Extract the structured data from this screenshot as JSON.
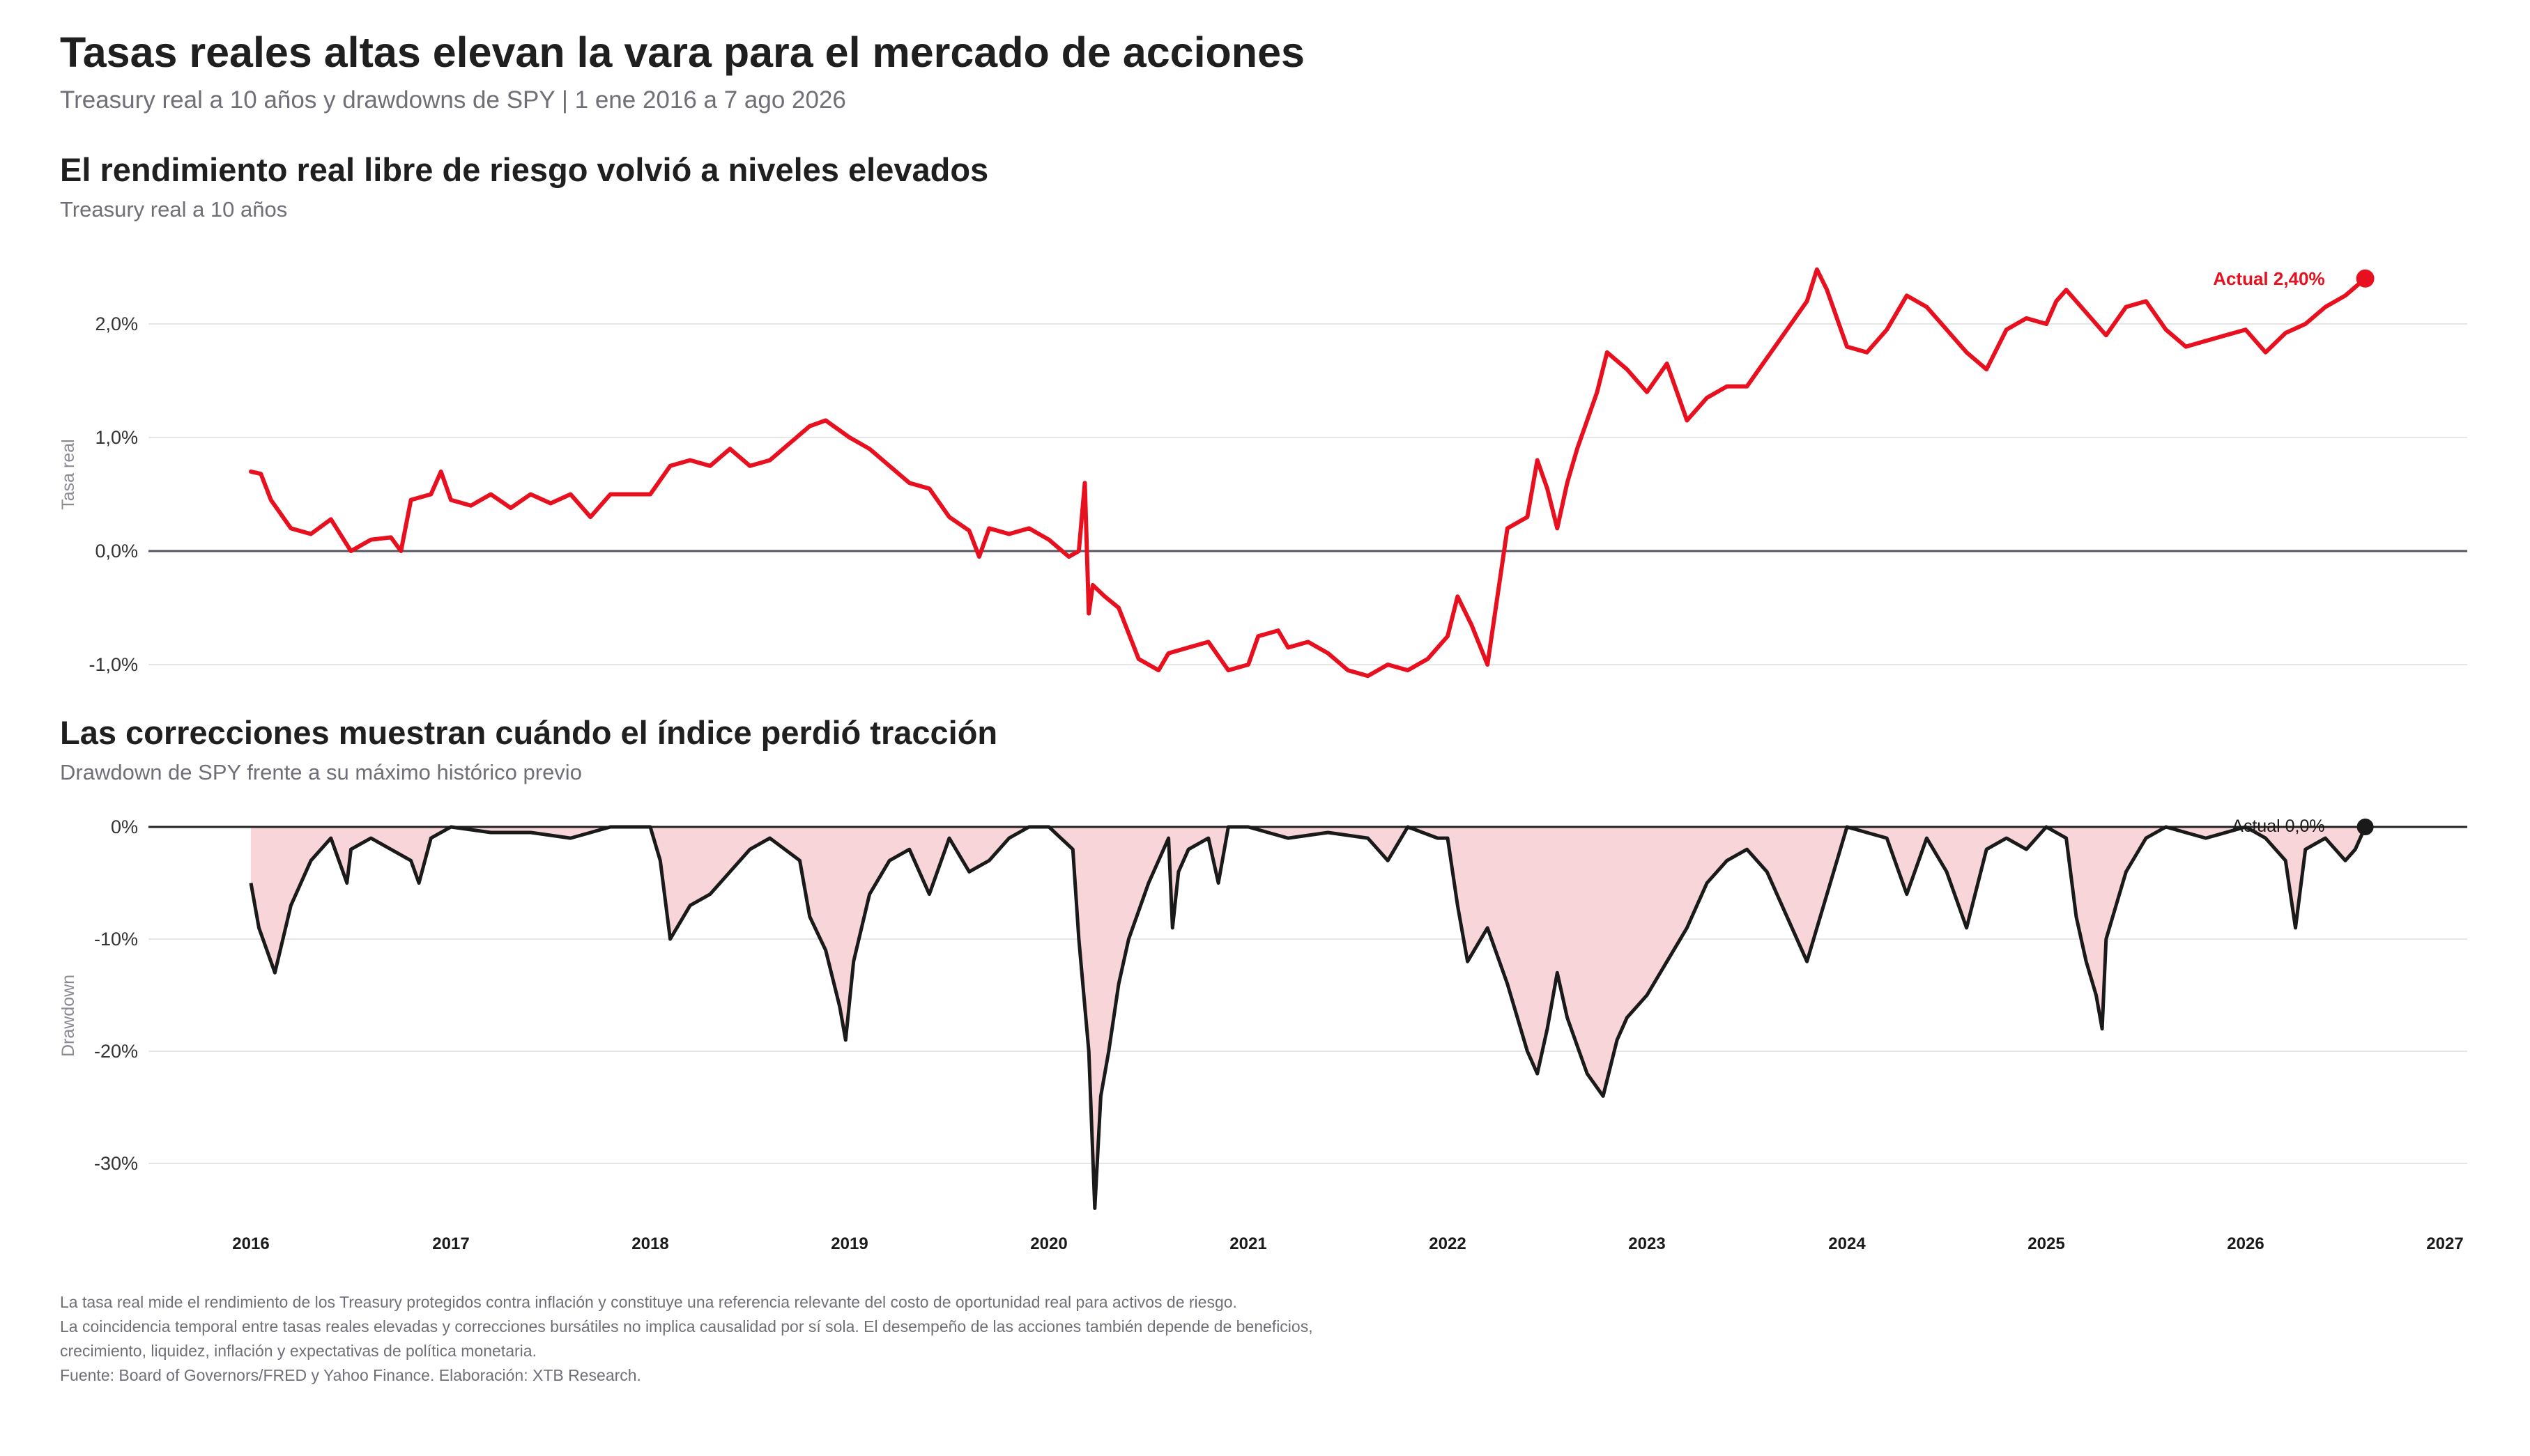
{
  "title": "Tasas reales altas elevan la vara para el mercado de acciones",
  "subtitle": "Treasury real a 10 años y drawdowns de SPY | 1 ene 2016 a 7 ago 2026",
  "panel1": {
    "title": "El rendimiento real libre de riesgo volvió a niveles elevados",
    "subtitle": "Treasury real a 10 años",
    "ylabel": "Tasa real",
    "yticks": [
      "2,0%",
      "1,0%",
      "0,0%",
      "-1,0%"
    ],
    "current_label": "Actual 2,40%"
  },
  "panel2": {
    "title": "Las correcciones muestran cuándo el índice perdió tracción",
    "subtitle": "Drawdown de SPY frente a su máximo histórico previo",
    "ylabel": "Drawdown",
    "yticks": [
      "0%",
      "-10%",
      "-20%",
      "-30%"
    ],
    "current_label": "Actual 0,0%"
  },
  "xticks": [
    "2016",
    "2017",
    "2018",
    "2019",
    "2020",
    "2021",
    "2022",
    "2023",
    "2024",
    "2025",
    "2026",
    "2027"
  ],
  "notes": [
    "La tasa real mide el rendimiento de los Treasury protegidos contra inflación y constituye una referencia relevante del costo de oportunidad real para activos de riesgo.",
    "La coincidencia temporal entre tasas reales elevadas y correcciones bursátiles no implica causalidad por sí sola. El desempeño de las acciones también depende de beneficios, crecimiento, liquidez, inflación y expectativas de política monetaria.",
    "Fuente: Board of Governors/FRED y Yahoo Finance. Elaboración: XTB Research."
  ],
  "colors": {
    "real_rate": "#e8101e",
    "drawdown_line": "#1a1a1a",
    "drawdown_fill": "#f8d5d8",
    "grid": "#e6e6e6",
    "zero": "#555560",
    "muted": "#6f6f77"
  },
  "chart_data": [
    {
      "type": "line",
      "title": "El rendimiento real libre de riesgo volvió a niveles elevados",
      "ylabel": "Tasa real",
      "ylim": [
        -1.25,
        2.6
      ],
      "grid": true,
      "series": [
        {
          "x": [
            2016.0,
            2016.05,
            2016.1,
            2016.2,
            2016.3,
            2016.4,
            2016.5,
            2016.55,
            2016.6,
            2016.7,
            2016.75,
            2016.8,
            2016.9,
            2016.95,
            2017.0,
            2017.1,
            2017.2,
            2017.3,
            2017.4,
            2017.5,
            2017.6,
            2017.7,
            2017.8,
            2017.9,
            2018.0,
            2018.1,
            2018.2,
            2018.3,
            2018.4,
            2018.5,
            2018.6,
            2018.7,
            2018.8,
            2018.88,
            2019.0,
            2019.1,
            2019.2,
            2019.3,
            2019.4,
            2019.5,
            2019.6,
            2019.65,
            2019.7,
            2019.8,
            2019.9,
            2020.0,
            2020.1,
            2020.15,
            2020.18,
            2020.2,
            2020.22,
            2020.28,
            2020.35,
            2020.45,
            2020.55,
            2020.6,
            2020.7,
            2020.8,
            2020.9,
            2021.0,
            2021.05,
            2021.15,
            2021.2,
            2021.3,
            2021.4,
            2021.5,
            2021.6,
            2021.7,
            2021.8,
            2021.9,
            2022.0,
            2022.05,
            2022.12,
            2022.2,
            2022.3,
            2022.4,
            2022.45,
            2022.5,
            2022.55,
            2022.6,
            2022.65,
            2022.75,
            2022.8,
            2022.9,
            2023.0,
            2023.1,
            2023.2,
            2023.3,
            2023.4,
            2023.5,
            2023.6,
            2023.7,
            2023.8,
            2023.85,
            2023.9,
            2024.0,
            2024.1,
            2024.2,
            2024.3,
            2024.4,
            2024.5,
            2024.6,
            2024.7,
            2024.8,
            2024.9,
            2025.0,
            2025.05,
            2025.1,
            2025.2,
            2025.3,
            2025.4,
            2025.5,
            2025.6,
            2025.7,
            2025.8,
            2025.9,
            2026.0,
            2026.1,
            2026.2,
            2026.3,
            2026.4,
            2026.5,
            2026.6
          ],
          "y": [
            0.7,
            0.68,
            0.45,
            0.2,
            0.15,
            0.28,
            0.0,
            0.05,
            0.1,
            0.12,
            0.0,
            0.45,
            0.5,
            0.7,
            0.45,
            0.4,
            0.5,
            0.38,
            0.5,
            0.42,
            0.5,
            0.3,
            0.5,
            0.5,
            0.5,
            0.75,
            0.8,
            0.75,
            0.9,
            0.75,
            0.8,
            0.95,
            1.1,
            1.15,
            1.0,
            0.9,
            0.75,
            0.6,
            0.55,
            0.3,
            0.18,
            -0.05,
            0.2,
            0.15,
            0.2,
            0.1,
            -0.05,
            0.0,
            0.6,
            -0.55,
            -0.3,
            -0.4,
            -0.5,
            -0.95,
            -1.05,
            -0.9,
            -0.85,
            -0.8,
            -1.05,
            -1.0,
            -0.75,
            -0.7,
            -0.85,
            -0.8,
            -0.9,
            -1.05,
            -1.1,
            -1.0,
            -1.05,
            -0.95,
            -0.75,
            -0.4,
            -0.65,
            -1.0,
            0.2,
            0.3,
            0.8,
            0.55,
            0.2,
            0.6,
            0.9,
            1.4,
            1.75,
            1.6,
            1.4,
            1.65,
            1.15,
            1.35,
            1.45,
            1.45,
            1.7,
            1.95,
            2.2,
            2.48,
            2.3,
            1.8,
            1.75,
            1.95,
            2.25,
            2.15,
            1.95,
            1.75,
            1.6,
            1.95,
            2.05,
            2.0,
            2.2,
            2.3,
            2.1,
            1.9,
            2.15,
            2.2,
            1.95,
            1.8,
            1.85,
            1.9,
            1.95,
            1.75,
            1.92,
            2.0,
            2.15,
            2.25,
            2.4
          ]
        }
      ]
    },
    {
      "type": "area",
      "title": "Las correcciones muestran cuándo el índice perdió tracción",
      "ylabel": "Drawdown",
      "ylim": [
        -35,
        2
      ],
      "grid": true,
      "series": [
        {
          "x": [
            2016.0,
            2016.04,
            2016.08,
            2016.12,
            2016.2,
            2016.3,
            2016.4,
            2016.48,
            2016.5,
            2016.6,
            2016.8,
            2016.84,
            2016.9,
            2017.0,
            2017.2,
            2017.4,
            2017.6,
            2017.8,
            2018.0,
            2018.05,
            2018.1,
            2018.2,
            2018.3,
            2018.4,
            2018.5,
            2018.6,
            2018.75,
            2018.8,
            2018.88,
            2018.95,
            2018.98,
            2019.02,
            2019.1,
            2019.2,
            2019.3,
            2019.4,
            2019.5,
            2019.6,
            2019.7,
            2019.8,
            2019.9,
            2020.0,
            2020.12,
            2020.15,
            2020.2,
            2020.23,
            2020.26,
            2020.3,
            2020.35,
            2020.4,
            2020.5,
            2020.6,
            2020.62,
            2020.65,
            2020.7,
            2020.8,
            2020.85,
            2020.9,
            2021.0,
            2021.2,
            2021.4,
            2021.6,
            2021.7,
            2021.8,
            2021.95,
            2022.0,
            2022.05,
            2022.1,
            2022.2,
            2022.3,
            2022.4,
            2022.45,
            2022.5,
            2022.55,
            2022.6,
            2022.7,
            2022.78,
            2022.85,
            2022.9,
            2023.0,
            2023.1,
            2023.2,
            2023.3,
            2023.4,
            2023.5,
            2023.6,
            2023.7,
            2023.8,
            2023.85,
            2023.95,
            2024.0,
            2024.2,
            2024.3,
            2024.4,
            2024.5,
            2024.6,
            2024.7,
            2024.8,
            2024.9,
            2025.0,
            2025.1,
            2025.15,
            2025.2,
            2025.25,
            2025.28,
            2025.3,
            2025.35,
            2025.4,
            2025.5,
            2025.6,
            2025.8,
            2026.0,
            2026.1,
            2026.2,
            2026.25,
            2026.3,
            2026.4,
            2026.5,
            2026.55,
            2026.6
          ],
          "y": [
            -5,
            -9,
            -11,
            -13,
            -7,
            -3,
            -1,
            -5,
            -2,
            -1,
            -3,
            -5,
            -1,
            0,
            -0.5,
            -0.5,
            -1,
            0,
            0,
            -3,
            -10,
            -7,
            -6,
            -4,
            -2,
            -1,
            -3,
            -8,
            -11,
            -16,
            -19,
            -12,
            -6,
            -3,
            -2,
            -6,
            -1,
            -4,
            -3,
            -1,
            0,
            0,
            -2,
            -10,
            -20,
            -34,
            -24,
            -20,
            -14,
            -10,
            -5,
            -1,
            -9,
            -4,
            -2,
            -1,
            -5,
            0,
            0,
            -1,
            -0.5,
            -1,
            -3,
            0,
            -1,
            -1,
            -7,
            -12,
            -9,
            -14,
            -20,
            -22,
            -18,
            -13,
            -17,
            -22,
            -24,
            -19,
            -17,
            -15,
            -12,
            -9,
            -5,
            -3,
            -2,
            -4,
            -8,
            -12,
            -9,
            -3,
            0,
            -1,
            -6,
            -1,
            -4,
            -9,
            -2,
            -1,
            -2,
            0,
            -1,
            -8,
            -12,
            -15,
            -18,
            -10,
            -7,
            -4,
            -1,
            0,
            -1,
            0,
            -1,
            -3,
            -9,
            -2,
            -1,
            -3,
            -2,
            0
          ]
        }
      ]
    }
  ]
}
